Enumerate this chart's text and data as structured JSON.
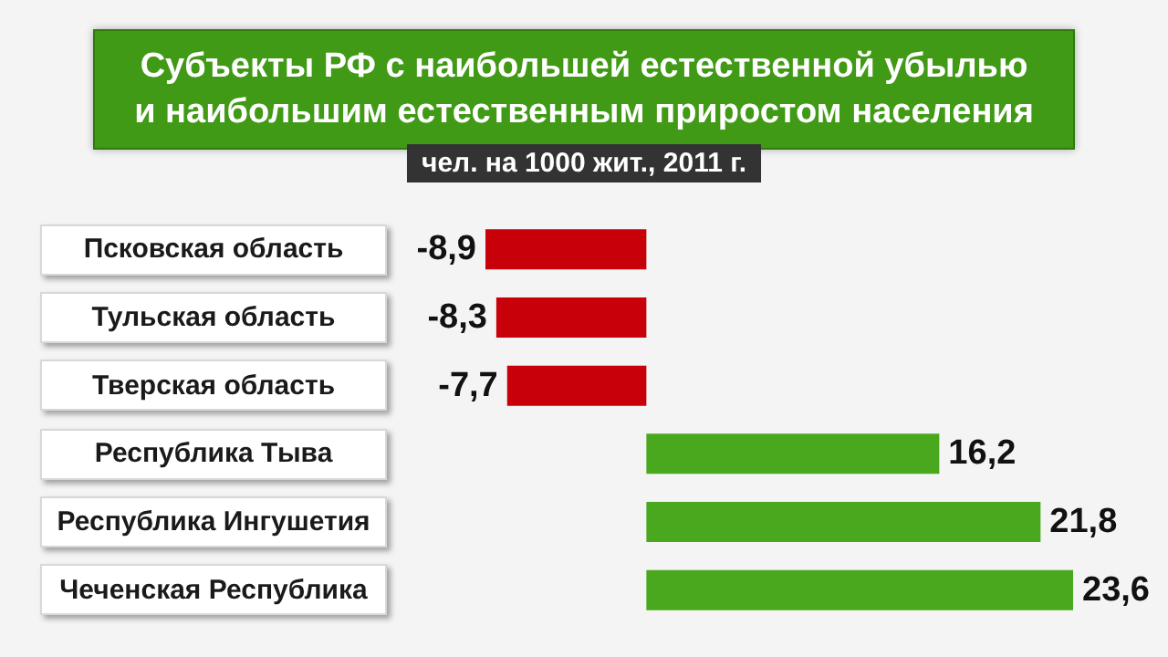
{
  "chart_data": {
    "type": "bar",
    "orientation": "horizontal",
    "title": "Субъекты РФ с наибольшей естественной убылью\nи наибольшим естественным приростом населения",
    "subtitle": "чел. на 1000 жит., 2011 г.",
    "categories": [
      "Псковская область",
      "Тульская область",
      "Тверская область",
      "Республика Тыва",
      "Республика Ингушетия",
      "Чеченская Республика"
    ],
    "values": [
      -8.9,
      -8.3,
      -7.7,
      16.2,
      21.8,
      23.6
    ],
    "value_labels": [
      "-8,9",
      "-8,3",
      "-7,7",
      "16,2",
      "21,8",
      "23,6"
    ],
    "colors": [
      "#c8000a",
      "#c8000a",
      "#c8000a",
      "#4aa81e",
      "#4aa81e",
      "#4aa81e"
    ],
    "grid": false
  }
}
